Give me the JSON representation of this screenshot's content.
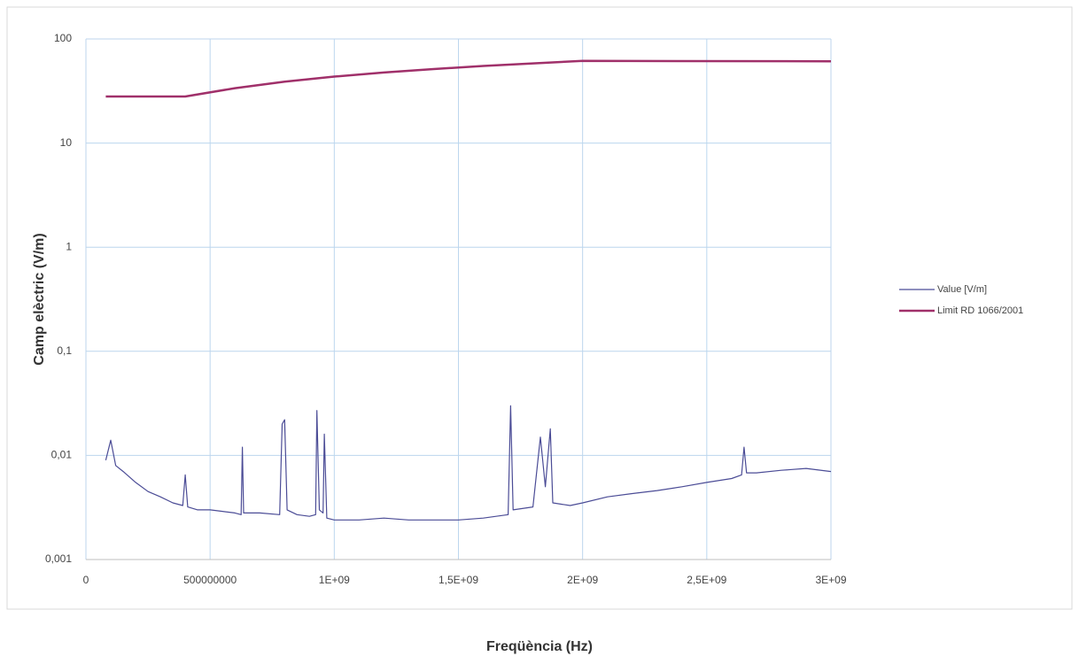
{
  "chart_data": {
    "type": "line",
    "xlabel": "Freqüència (Hz)",
    "ylabel": "Camp elèctric (V/m)",
    "log_y": true,
    "grid": true,
    "legend": "right",
    "xlim": [
      0,
      3000000000
    ],
    "ylim": [
      0.001,
      100
    ],
    "xticks": [
      0,
      500000000,
      {
        "value": 1000000000,
        "label": "1E+09"
      },
      {
        "value": 1500000000,
        "label": "1,5E+09"
      },
      {
        "value": 2000000000,
        "label": "2E+09"
      },
      {
        "value": 2500000000,
        "label": "2,5E+09"
      },
      {
        "value": 3000000000,
        "label": "3E+09"
      }
    ],
    "yticks": [
      {
        "value": 0.001,
        "label": "0,001"
      },
      {
        "value": 0.01,
        "label": "0,01"
      },
      {
        "value": 0.1,
        "label": "0,1"
      },
      1,
      10,
      100
    ],
    "series": [
      {
        "name": "Value [V/m]",
        "color": "#4b4c96",
        "width": 1.2,
        "x": [
          80000000,
          100000000,
          120000000,
          150000000,
          200000000,
          250000000,
          300000000,
          350000000,
          390000000,
          400000000,
          410000000,
          450000000,
          500000000,
          550000000,
          600000000,
          625000000,
          630000000,
          635000000,
          700000000,
          780000000,
          790000000,
          800000000,
          810000000,
          850000000,
          900000000,
          925000000,
          930000000,
          940000000,
          955000000,
          960000000,
          970000000,
          1000000000,
          1100000000,
          1200000000,
          1300000000,
          1400000000,
          1500000000,
          1600000000,
          1700000000,
          1710000000,
          1720000000,
          1800000000,
          1830000000,
          1850000000,
          1870000000,
          1880000000,
          1950000000,
          2000000000,
          2100000000,
          2200000000,
          2300000000,
          2400000000,
          2500000000,
          2600000000,
          2640000000,
          2650000000,
          2660000000,
          2700000000,
          2800000000,
          2900000000,
          3000000000
        ],
        "values": [
          0.009,
          0.014,
          0.008,
          0.007,
          0.0055,
          0.0045,
          0.004,
          0.0035,
          0.0033,
          0.0065,
          0.0032,
          0.003,
          0.003,
          0.0029,
          0.0028,
          0.0027,
          0.012,
          0.0028,
          0.0028,
          0.0027,
          0.02,
          0.022,
          0.003,
          0.0027,
          0.0026,
          0.0027,
          0.027,
          0.003,
          0.0028,
          0.016,
          0.0025,
          0.0024,
          0.0024,
          0.0025,
          0.0024,
          0.0024,
          0.0024,
          0.0025,
          0.0027,
          0.03,
          0.003,
          0.0032,
          0.015,
          0.005,
          0.018,
          0.0035,
          0.0033,
          0.0035,
          0.004,
          0.0043,
          0.0046,
          0.005,
          0.0055,
          0.006,
          0.0065,
          0.012,
          0.0068,
          0.0068,
          0.0072,
          0.0075,
          0.007
        ]
      },
      {
        "name": "Limit RD 1066/2001",
        "color": "#a0306a",
        "width": 2.5,
        "x": [
          80000000,
          400000000,
          600000000,
          800000000,
          1000000000,
          1200000000,
          1400000000,
          1600000000,
          1800000000,
          2000000000,
          3000000000
        ],
        "values": [
          28,
          28,
          33.7,
          38.9,
          43.5,
          47.6,
          51.4,
          55,
          58.3,
          61.5,
          61
        ]
      }
    ]
  }
}
